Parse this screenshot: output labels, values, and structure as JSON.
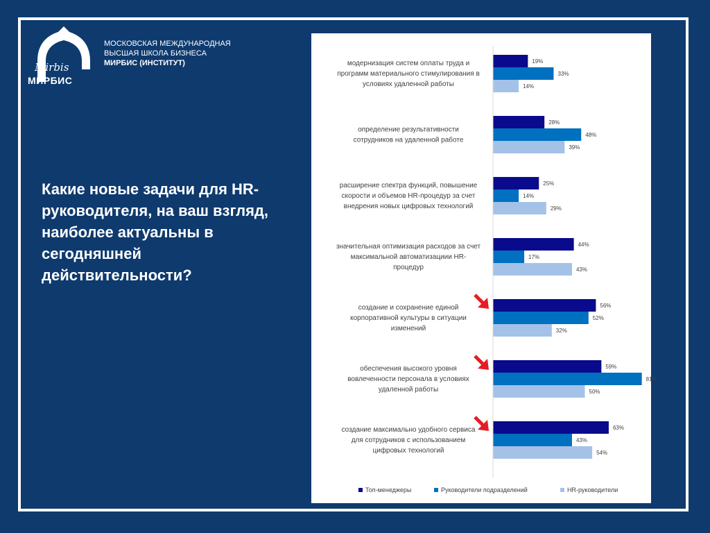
{
  "org": {
    "logo_script": "Mirbis",
    "logo_brand": "МИРБИС",
    "line1": "МОСКОВСКАЯ МЕЖДУНАРОДНАЯ",
    "line2": "ВЫСШАЯ ШКОЛА БИЗНЕСА",
    "line3": "МИРБИС (ИНСТИТУТ)"
  },
  "question": "Какие новые задачи для HR-руководителя, на ваш взгляд, наиболее актуальны в сегодняшней действительности?",
  "colors": {
    "background": "#0e3a6e",
    "top_managers": "#0a0a8c",
    "department_heads": "#0070c0",
    "hr_heads": "#a4c2e8",
    "arrow": "#e31e24"
  },
  "chart_data": {
    "type": "bar",
    "orientation": "horizontal",
    "unit": "%",
    "categories": [
      [
        "модернизация систем оплаты труда и",
        "программ материального стимулирования в",
        "условиях удаленной работы"
      ],
      [
        "определение результативности",
        "сотрудников на удаленной работе"
      ],
      [
        "расширение спектра функций, повышение",
        "скорости и объемов HR-процедур за счет",
        "внедрения новых цифровых технологий"
      ],
      [
        "значительная оптимизация расходов за счет",
        "максимальной автоматизациии HR-",
        "процедур"
      ],
      [
        "создание и сохранение единой",
        "корпоративной культуры в ситуации",
        "изменений"
      ],
      [
        "обеспечения высокого уровня",
        "вовлеченности персонала в условиях",
        "удаленной работы"
      ],
      [
        "создание максимально удобного сервиса",
        "для сотрудников с использованием",
        "цифровых технологий"
      ]
    ],
    "series": [
      {
        "name": "Топ-менеджеры",
        "values": [
          19,
          28,
          25,
          44,
          56,
          59,
          63
        ]
      },
      {
        "name": "Руководители подразделений",
        "values": [
          33,
          48,
          14,
          17,
          52,
          81,
          43
        ]
      },
      {
        "name": "HR-руководители",
        "values": [
          14,
          39,
          29,
          43,
          32,
          50,
          54
        ]
      }
    ],
    "highlighted": [
      false,
      false,
      false,
      false,
      true,
      true,
      true
    ],
    "legend_position": "bottom",
    "grid": false
  }
}
